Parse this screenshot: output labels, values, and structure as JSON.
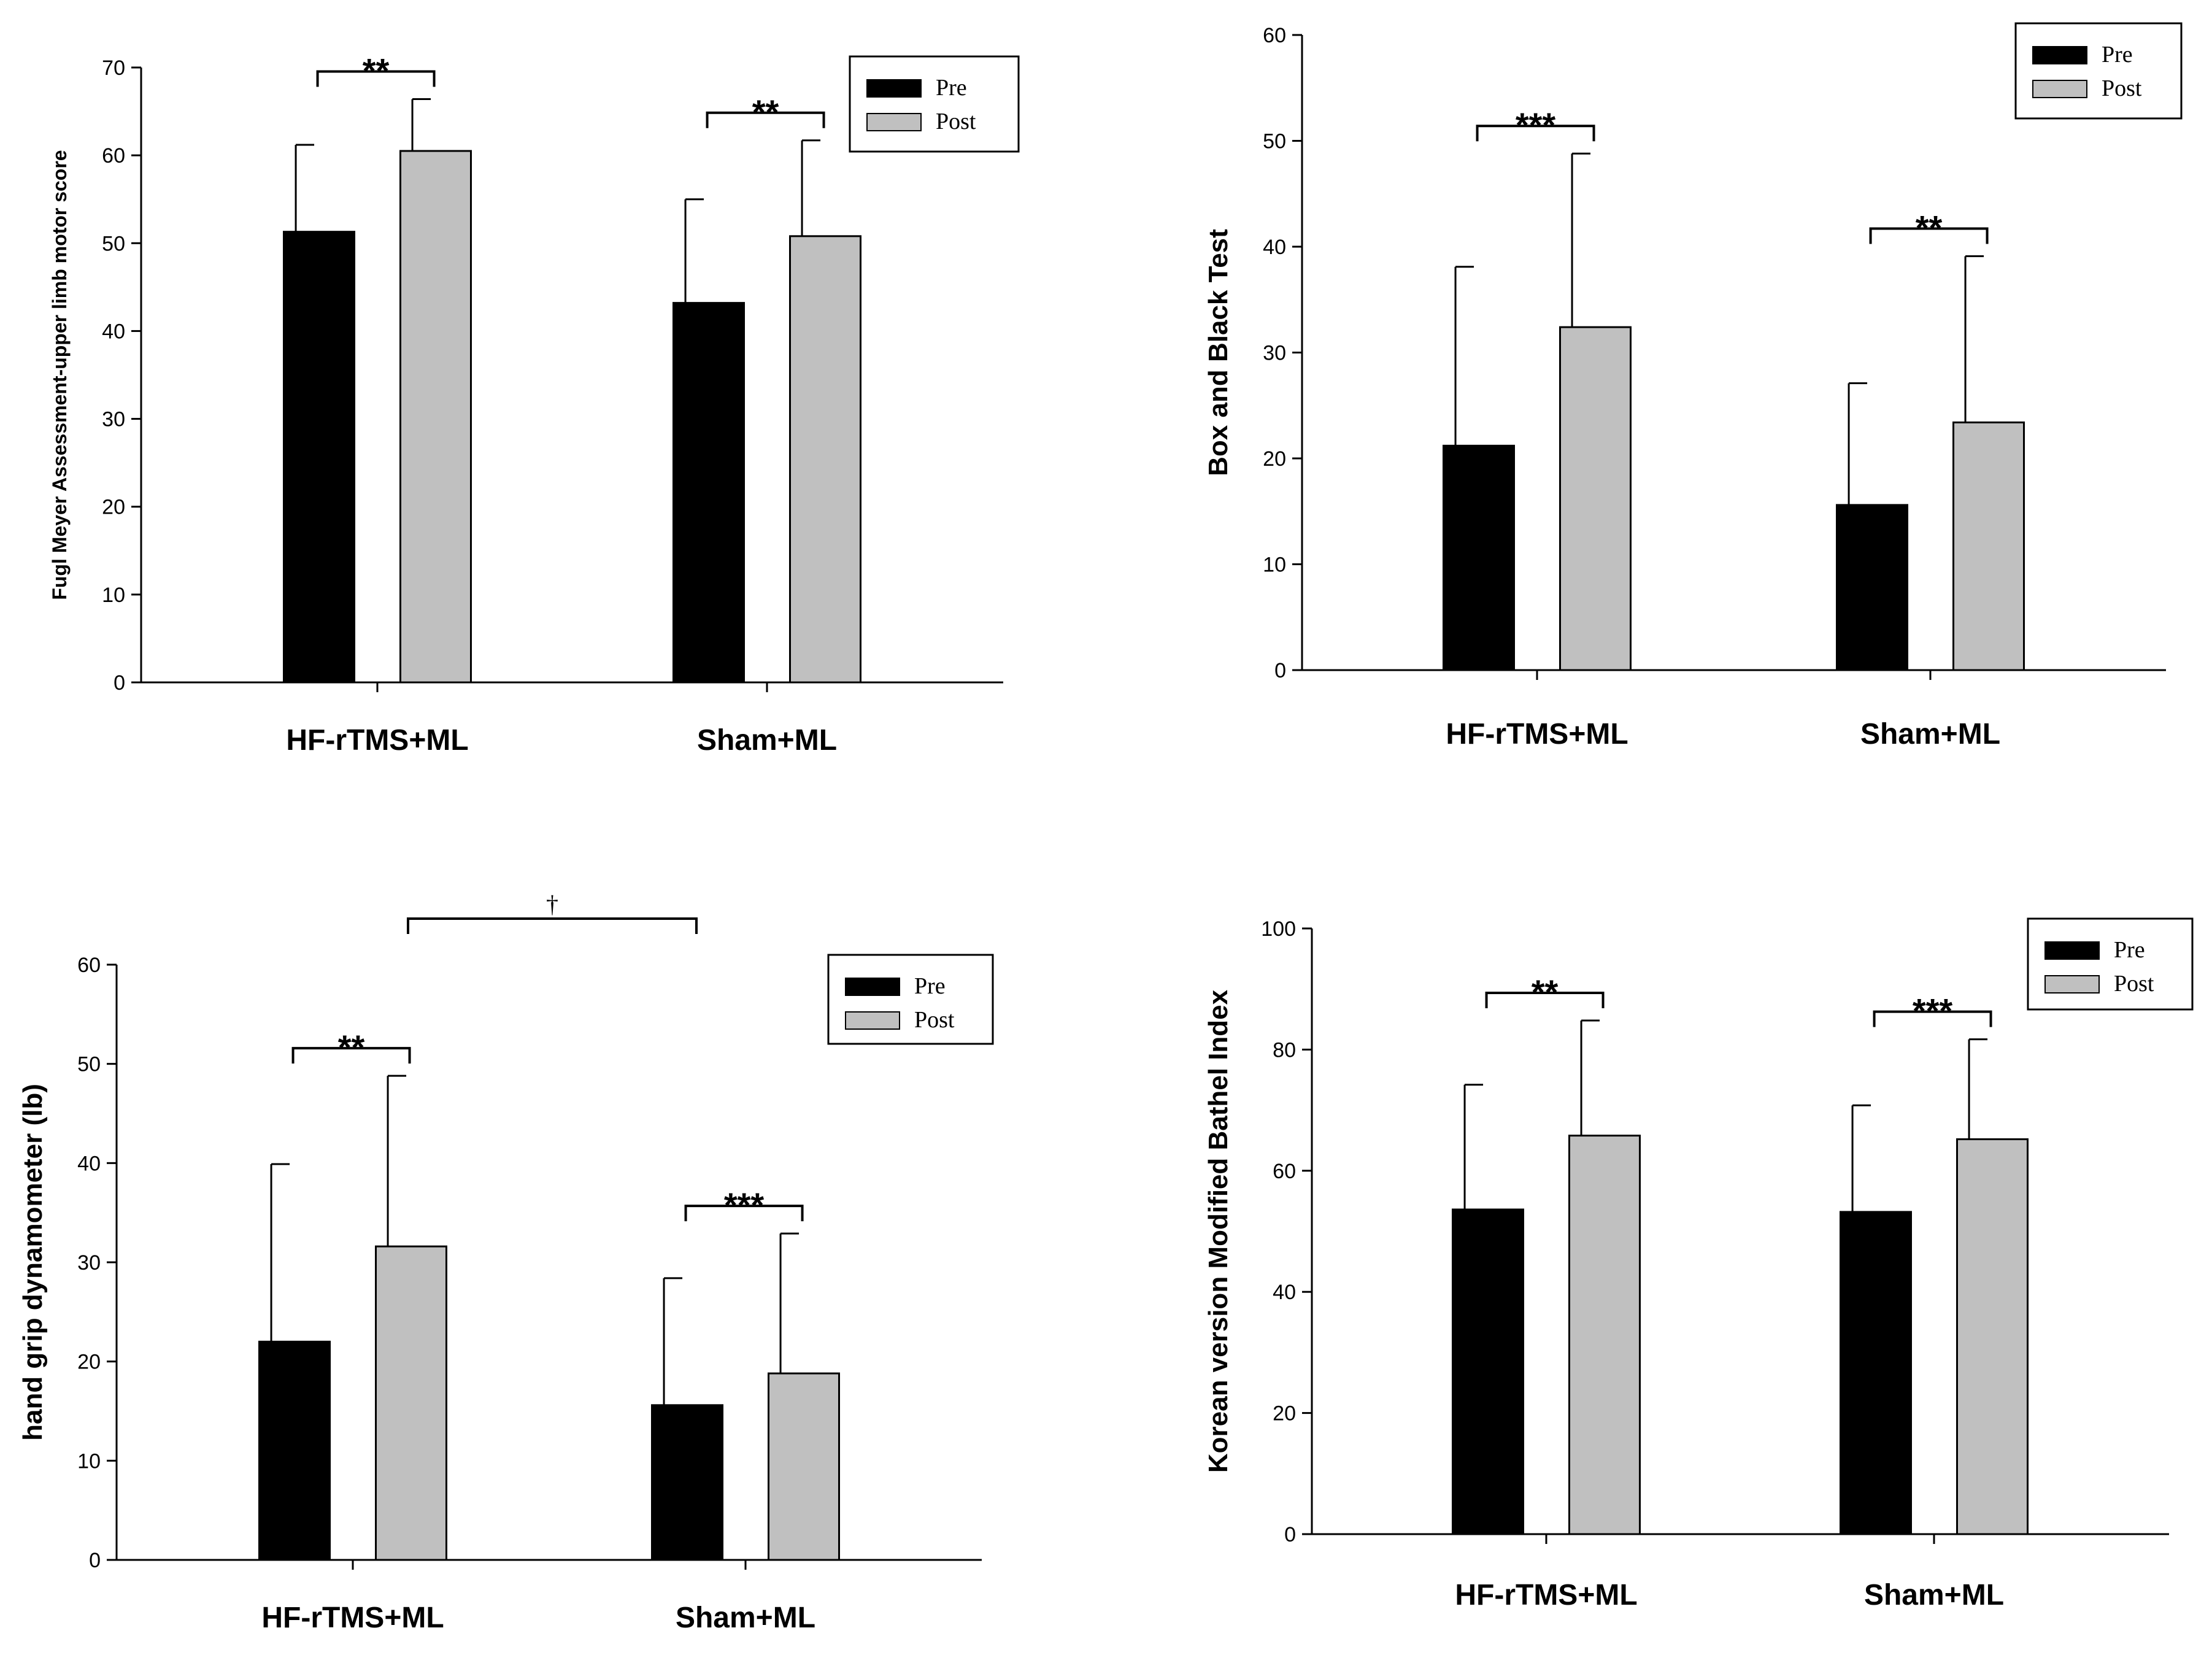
{
  "colors": {
    "pre": "#000000",
    "post": "#c0c0c0",
    "axis": "#000000"
  },
  "chart_data": [
    {
      "type": "bar",
      "title": "",
      "xlabel": "",
      "ylabel": "Fugl Meyer Assessment-upper limb motor score",
      "ylim": [
        0,
        70
      ],
      "yticks": [
        0,
        10,
        20,
        30,
        40,
        50,
        60,
        70
      ],
      "categories": [
        "HF-rTMS+ML",
        "Sham+ML"
      ],
      "series": [
        {
          "name": "Pre",
          "values": [
            51.3,
            43.2
          ],
          "errors": [
            9.9,
            11.8
          ]
        },
        {
          "name": "Post",
          "values": [
            60.5,
            50.8
          ],
          "errors": [
            5.9,
            10.9
          ]
        }
      ],
      "legend": {
        "position": "top-right",
        "entries": [
          "Pre",
          "Post"
        ]
      },
      "significance": [
        {
          "label": "**",
          "category": 0
        },
        {
          "label": "**",
          "category": 1
        }
      ],
      "between_groups": []
    },
    {
      "type": "bar",
      "title": "",
      "xlabel": "",
      "ylabel": "Box and Black Test",
      "ylim": [
        0,
        60
      ],
      "yticks": [
        0,
        10,
        20,
        30,
        40,
        50,
        60
      ],
      "categories": [
        "HF-rTMS+ML",
        "Sham+ML"
      ],
      "series": [
        {
          "name": "Pre",
          "values": [
            21.2,
            15.6
          ],
          "errors": [
            16.9,
            11.5
          ]
        },
        {
          "name": "Post",
          "values": [
            32.4,
            23.4
          ],
          "errors": [
            16.4,
            15.7
          ]
        }
      ],
      "legend": {
        "position": "top-right",
        "entries": [
          "Pre",
          "Post"
        ]
      },
      "significance": [
        {
          "label": "***",
          "category": 0
        },
        {
          "label": "**",
          "category": 1
        }
      ],
      "between_groups": []
    },
    {
      "type": "bar",
      "title": "",
      "xlabel": "",
      "ylabel": "hand grip dynamometer (lb)",
      "ylim": [
        0,
        60
      ],
      "yticks": [
        0,
        10,
        20,
        30,
        40,
        50,
        60
      ],
      "categories": [
        "HF-rTMS+ML",
        "Sham+ML"
      ],
      "series": [
        {
          "name": "Pre",
          "values": [
            22.0,
            15.6
          ],
          "errors": [
            17.9,
            12.8
          ]
        },
        {
          "name": "Post",
          "values": [
            31.6,
            18.8
          ],
          "errors": [
            17.2,
            14.1
          ]
        }
      ],
      "legend": {
        "position": "top-right",
        "entries": [
          "Pre",
          "Post"
        ]
      },
      "significance": [
        {
          "label": "**",
          "category": 0
        },
        {
          "label": "***",
          "category": 1
        }
      ],
      "between_groups": [
        {
          "label": "†",
          "from_category": 0,
          "to_category": 1
        }
      ]
    },
    {
      "type": "bar",
      "title": "",
      "xlabel": "",
      "ylabel": "Korean version Modified Bathel Index",
      "ylim": [
        0,
        100
      ],
      "yticks": [
        0,
        20,
        40,
        60,
        80,
        100
      ],
      "categories": [
        "HF-rTMS+ML",
        "Sham+ML"
      ],
      "series": [
        {
          "name": "Pre",
          "values": [
            53.6,
            53.2
          ],
          "errors": [
            20.6,
            17.6
          ]
        },
        {
          "name": "Post",
          "values": [
            65.8,
            65.2
          ],
          "errors": [
            19.0,
            16.5
          ]
        }
      ],
      "legend": {
        "position": "top-right",
        "entries": [
          "Pre",
          "Post"
        ]
      },
      "significance": [
        {
          "label": "**",
          "category": 0
        },
        {
          "label": "***",
          "category": 1
        }
      ],
      "between_groups": []
    }
  ]
}
